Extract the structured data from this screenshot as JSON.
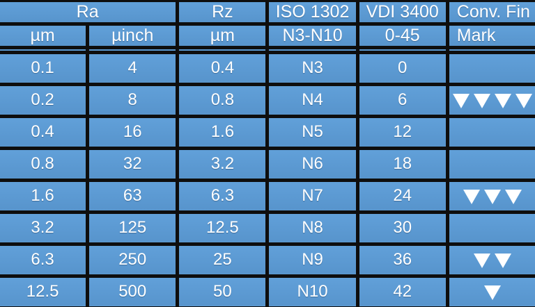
{
  "colors": {
    "cell_blue": "#5b9bd5",
    "grid_black": "#0e0e0e",
    "text_white": "#ffffff",
    "mark_triangle": "#ffffff"
  },
  "icons": {
    "triangle_down": "▼"
  },
  "table": {
    "column_keys": [
      "ra-um",
      "ra-uinch",
      "rz-um",
      "iso-1302",
      "vdi-3400",
      "finish-mark"
    ],
    "header1": [
      {
        "label": "Ra",
        "span": 2
      },
      {
        "label": "Rz",
        "span": 1
      },
      {
        "label": "ISO 1302",
        "span": 1
      },
      {
        "label": "VDI 3400",
        "span": 1
      },
      {
        "label": "Conv. Fin",
        "span": 1
      }
    ],
    "header2": [
      {
        "label": "µm"
      },
      {
        "label": "µinch"
      },
      {
        "label": "µm"
      },
      {
        "label": "N3-N10"
      },
      {
        "label": "0-45"
      },
      {
        "label": "Mark"
      }
    ],
    "rows": [
      {
        "values": [
          "",
          "",
          "",
          "",
          ""
        ],
        "marks": 0
      },
      {
        "values": [
          "0.1",
          "4",
          "0.4",
          "N3",
          "0"
        ],
        "marks": 0
      },
      {
        "values": [
          "0.2",
          "8",
          "0.8",
          "N4",
          "6"
        ],
        "marks": 4
      },
      {
        "values": [
          "0.4",
          "16",
          "1.6",
          "N5",
          "12"
        ],
        "marks": 0
      },
      {
        "values": [
          "0.8",
          "32",
          "3.2",
          "N6",
          "18"
        ],
        "marks": 0
      },
      {
        "values": [
          "1.6",
          "63",
          "6.3",
          "N7",
          "24"
        ],
        "marks": 3
      },
      {
        "values": [
          "3.2",
          "125",
          "12.5",
          "N8",
          "30"
        ],
        "marks": 0
      },
      {
        "values": [
          "6.3",
          "250",
          "25",
          "N9",
          "36"
        ],
        "marks": 2
      },
      {
        "values": [
          "12.5",
          "500",
          "50",
          "N10",
          "42"
        ],
        "marks": 1
      }
    ]
  },
  "chart_data": {
    "type": "table",
    "columns": [
      [
        "Ra",
        "µm"
      ],
      [
        "Ra",
        "µinch"
      ],
      [
        "Rz",
        "µm"
      ],
      [
        "ISO 1302",
        "N3-N10"
      ],
      [
        "VDI 3400",
        "0-45"
      ],
      [
        "Conv. Fin",
        "Mark"
      ]
    ],
    "rows": [
      [
        "0.1",
        "4",
        "0.4",
        "N3",
        "0",
        ""
      ],
      [
        "0.2",
        "8",
        "0.8",
        "N4",
        "6",
        "▼▼▼▼"
      ],
      [
        "0.4",
        "16",
        "1.6",
        "N5",
        "12",
        ""
      ],
      [
        "0.8",
        "32",
        "3.2",
        "N6",
        "18",
        ""
      ],
      [
        "1.6",
        "63",
        "6.3",
        "N7",
        "24",
        "▼▼▼"
      ],
      [
        "3.2",
        "125",
        "12.5",
        "N8",
        "30",
        ""
      ],
      [
        "6.3",
        "250",
        "25",
        "N9",
        "36",
        "▼▼"
      ],
      [
        "12.5",
        "500",
        "50",
        "N10",
        "42",
        "▼"
      ]
    ],
    "layout": {
      "grid": "on",
      "equal_columns": 6,
      "header_rows": 2,
      "spacer_row_after_header": true
    }
  }
}
